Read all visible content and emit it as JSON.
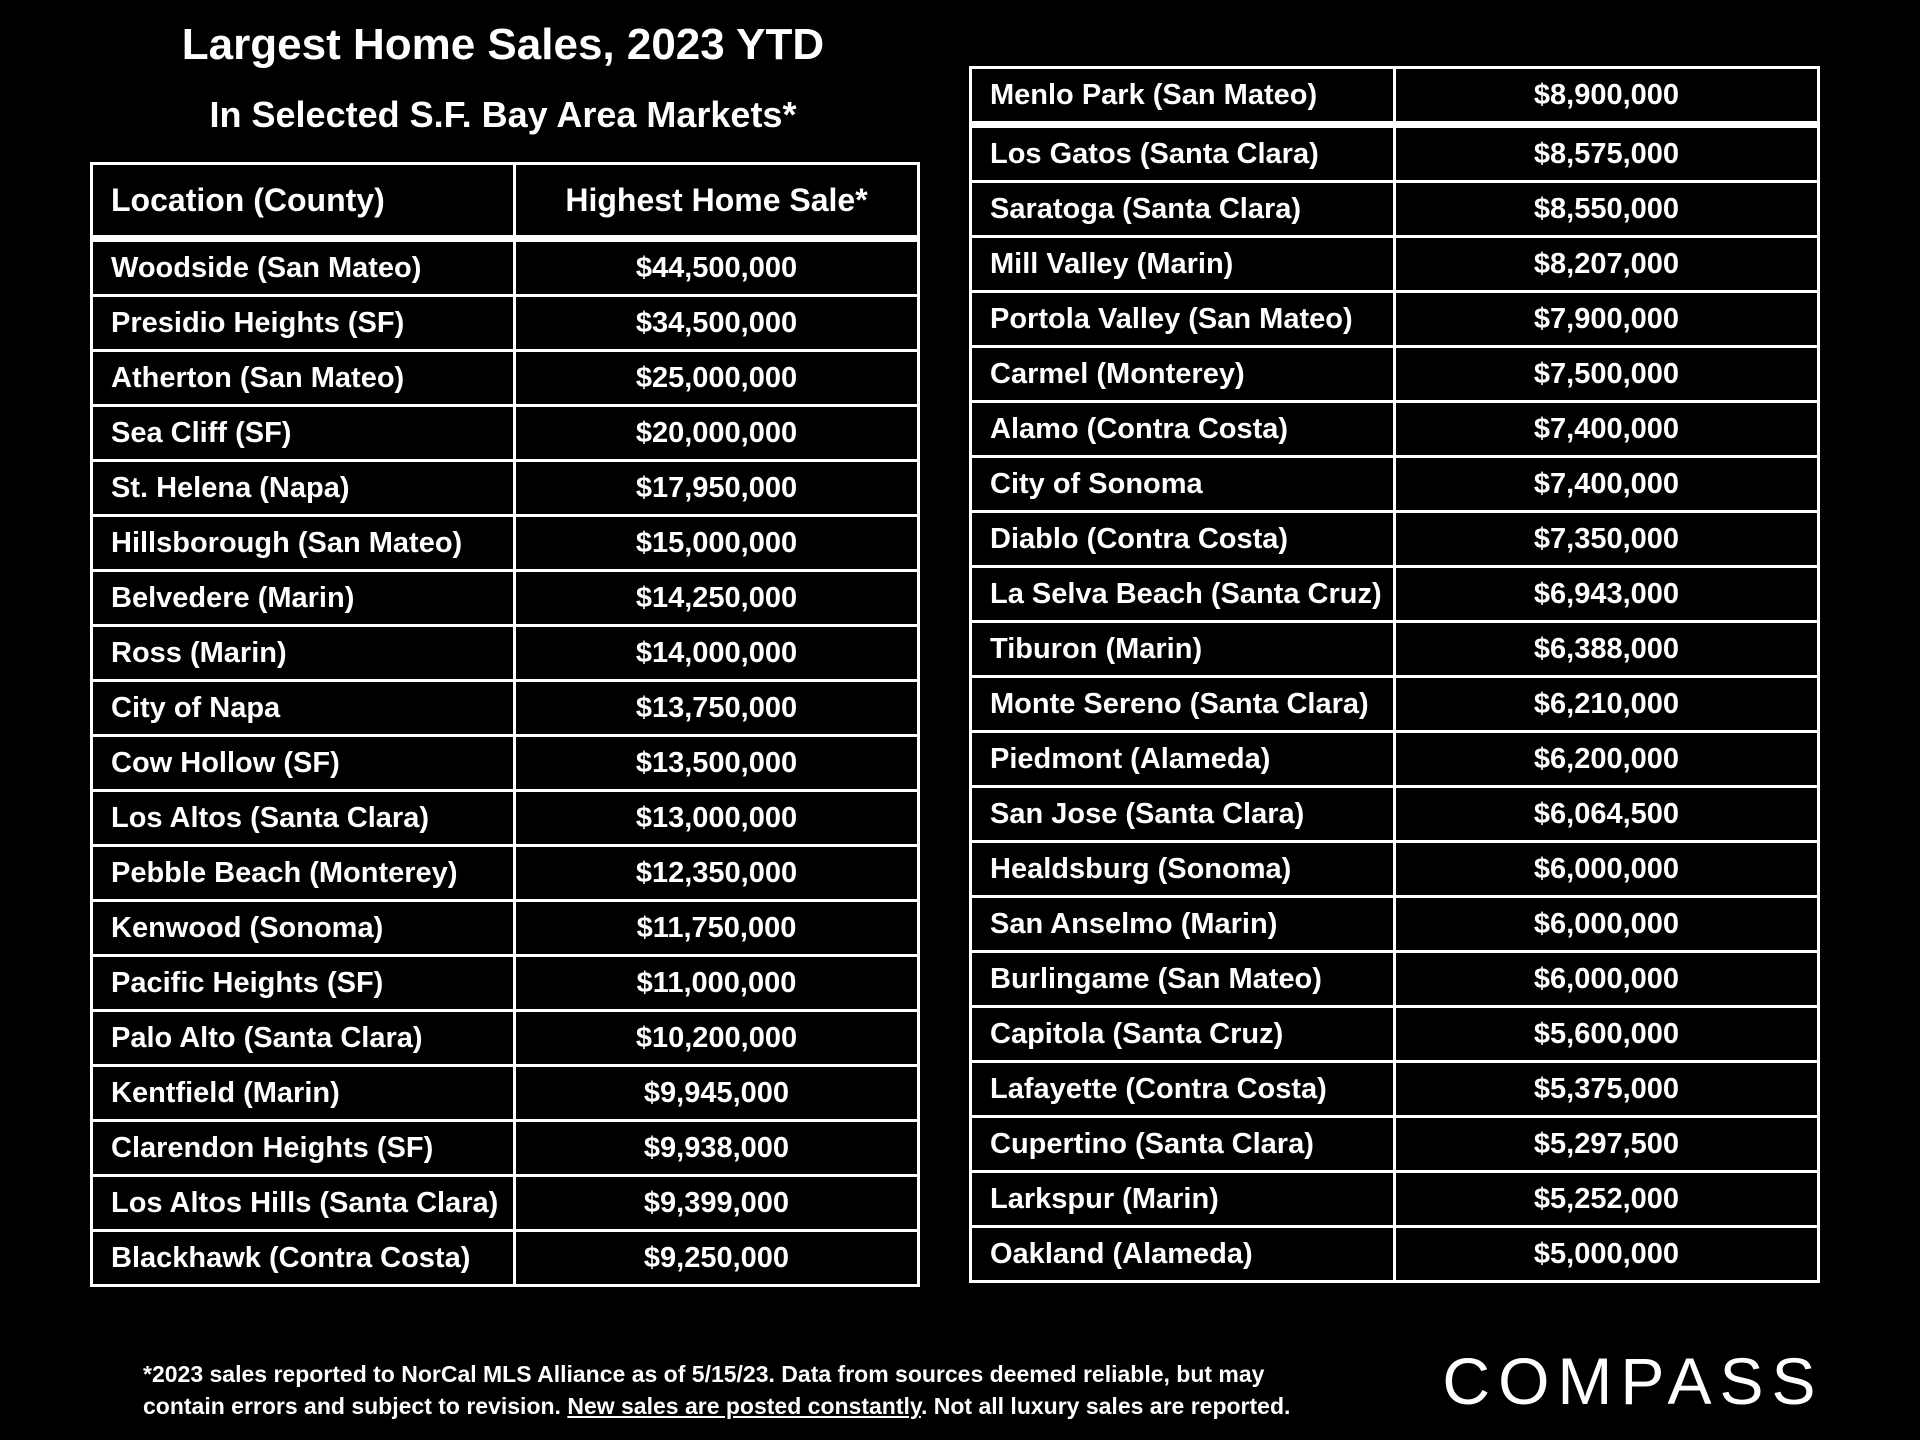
{
  "title": "Largest Home Sales, 2023 YTD",
  "subtitle": "In Selected S.F. Bay Area Markets*",
  "logo_text": "COMPASS",
  "footnote": {
    "line1": "*2023 sales reported to NorCal MLS Alliance as of 5/15/23. Data from sources deemed reliable, but may",
    "line2_before": "contain errors and subject to revision. ",
    "line2_link": "New sales are posted constantly",
    "line2_after": ". Not all luxury sales are reported."
  },
  "chart_data": {
    "type": "table",
    "title": "Largest Home Sales, 2023 YTD",
    "subtitle": "In Selected S.F. Bay Area Markets*",
    "columns": [
      "Location (County)",
      "Highest Home Sale*"
    ],
    "rows": [
      [
        "Woodside (San Mateo)",
        "$44,500,000"
      ],
      [
        "Presidio Heights (SF)",
        "$34,500,000"
      ],
      [
        "Atherton (San Mateo)",
        "$25,000,000"
      ],
      [
        "Sea Cliff (SF)",
        "$20,000,000"
      ],
      [
        "St. Helena (Napa)",
        "$17,950,000"
      ],
      [
        "Hillsborough (San Mateo)",
        "$15,000,000"
      ],
      [
        "Belvedere (Marin)",
        "$14,250,000"
      ],
      [
        "Ross (Marin)",
        "$14,000,000"
      ],
      [
        "City of Napa",
        "$13,750,000"
      ],
      [
        "Cow Hollow (SF)",
        "$13,500,000"
      ],
      [
        "Los Altos (Santa Clara)",
        "$13,000,000"
      ],
      [
        "Pebble Beach (Monterey)",
        "$12,350,000"
      ],
      [
        "Kenwood (Sonoma)",
        "$11,750,000"
      ],
      [
        "Pacific Heights (SF)",
        "$11,000,000"
      ],
      [
        "Palo Alto (Santa Clara)",
        "$10,200,000"
      ],
      [
        "Kentfield (Marin)",
        "$9,945,000"
      ],
      [
        "Clarendon Heights (SF)",
        "$9,938,000"
      ],
      [
        "Los Altos Hills (Santa Clara)",
        "$9,399,000"
      ],
      [
        "Blackhawk (Contra Costa)",
        "$9,250,000"
      ],
      [
        "Menlo Park (San Mateo)",
        "$8,900,000"
      ],
      [
        "Los Gatos (Santa Clara)",
        "$8,575,000"
      ],
      [
        "Saratoga (Santa Clara)",
        "$8,550,000"
      ],
      [
        "Mill Valley (Marin)",
        "$8,207,000"
      ],
      [
        "Portola Valley (San Mateo)",
        "$7,900,000"
      ],
      [
        "Carmel (Monterey)",
        "$7,500,000"
      ],
      [
        "Alamo (Contra Costa)",
        "$7,400,000"
      ],
      [
        "City of Sonoma",
        "$7,400,000"
      ],
      [
        "Diablo (Contra Costa)",
        "$7,350,000"
      ],
      [
        "La Selva Beach (Santa Cruz)",
        "$6,943,000"
      ],
      [
        "Tiburon (Marin)",
        "$6,388,000"
      ],
      [
        "Monte Sereno (Santa Clara)",
        "$6,210,000"
      ],
      [
        "Piedmont (Alameda)",
        "$6,200,000"
      ],
      [
        "San Jose (Santa Clara)",
        "$6,064,500"
      ],
      [
        "Healdsburg (Sonoma)",
        "$6,000,000"
      ],
      [
        "San Anselmo (Marin)",
        "$6,000,000"
      ],
      [
        "Burlingame (San Mateo)",
        "$6,000,000"
      ],
      [
        "Capitola (Santa Cruz)",
        "$5,600,000"
      ],
      [
        "Lafayette (Contra Costa)",
        "$5,375,000"
      ],
      [
        "Cupertino (Santa Clara)",
        "$5,297,500"
      ],
      [
        "Larkspur (Marin)",
        "$5,252,000"
      ],
      [
        "Oakland (Alameda)",
        "$5,000,000"
      ]
    ]
  },
  "colors": {
    "background": "#000000",
    "text": "#ffffff",
    "border": "#ffffff"
  }
}
